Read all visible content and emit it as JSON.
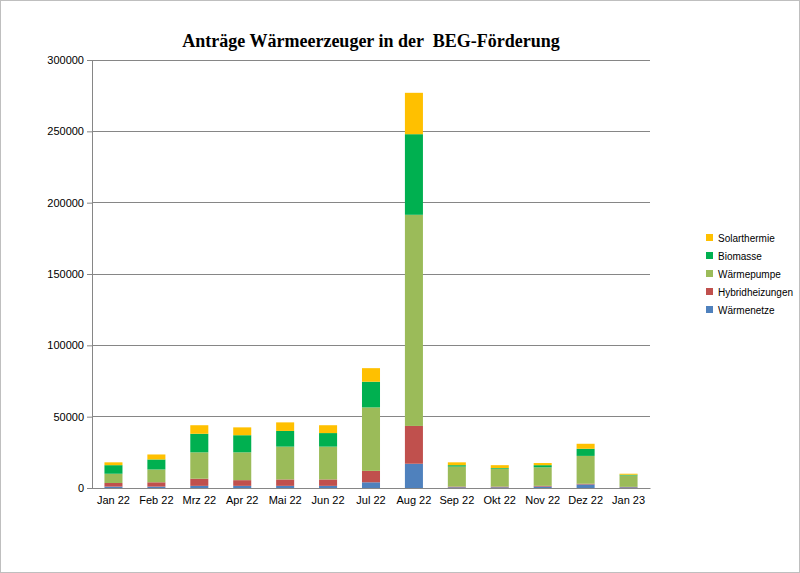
{
  "chart_data": {
    "type": "bar",
    "stacked": true,
    "title": "Anträge Wärmeerzeuger in der  BEG-Förderung",
    "categories": [
      "Jan 22",
      "Feb 22",
      "Mrz 22",
      "Apr 22",
      "Mai 22",
      "Jun 22",
      "Jul 22",
      "Aug 22",
      "Sep 22",
      "Okt 22",
      "Nov 22",
      "Dez 22",
      "Jan 23"
    ],
    "series": [
      {
        "name": "Wärmenetze",
        "color": "#4f81bd",
        "values": [
          1000,
          1000,
          1500,
          1500,
          1500,
          1500,
          4000,
          17000,
          500,
          500,
          1000,
          2500,
          500
        ]
      },
      {
        "name": "Hybridheizungen",
        "color": "#c0504d",
        "values": [
          2500,
          3000,
          5000,
          4000,
          4500,
          4500,
          8000,
          26500,
          500,
          500,
          500,
          500,
          300
        ]
      },
      {
        "name": "Wärmepumpe",
        "color": "#9bbb59",
        "values": [
          6500,
          9000,
          18500,
          19500,
          23000,
          23000,
          44500,
          148000,
          14000,
          12500,
          13000,
          19500,
          8000
        ]
      },
      {
        "name": "Biomasse",
        "color": "#00b050",
        "values": [
          6000,
          7000,
          13000,
          12000,
          11000,
          9500,
          18000,
          56500,
          1000,
          500,
          1500,
          5000,
          500
        ]
      },
      {
        "name": "Solarthermie",
        "color": "#ffc000",
        "values": [
          2000,
          3500,
          6000,
          5500,
          6000,
          5500,
          9500,
          29000,
          2000,
          2000,
          1500,
          3500,
          700
        ]
      }
    ],
    "ylim": [
      0,
      300000
    ],
    "yticks": [
      0,
      50000,
      100000,
      150000,
      200000,
      250000,
      300000
    ],
    "grid": true,
    "legend": "right"
  }
}
